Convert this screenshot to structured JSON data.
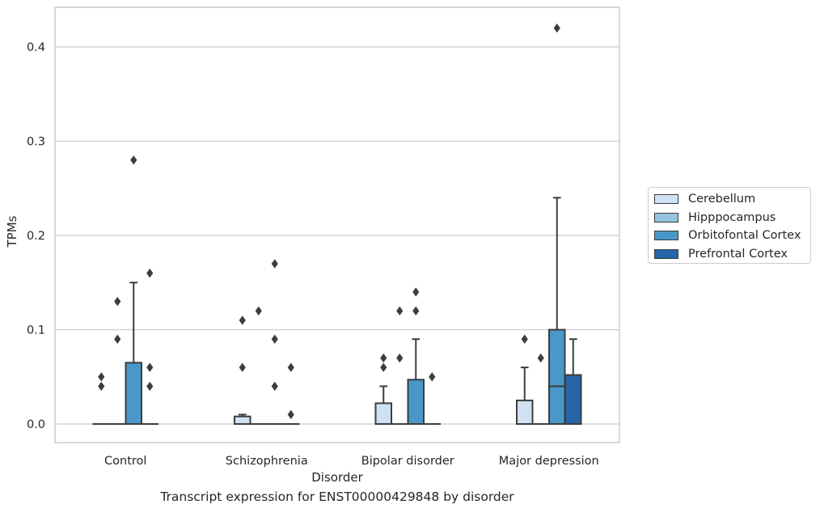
{
  "chart_data": {
    "type": "box",
    "title": "Transcript expression for ENST00000429848 by disorder",
    "xlabel": "Disorder",
    "ylabel": "TPMs",
    "ylim": [
      -0.02,
      0.443
    ],
    "yticks": [
      0.0,
      0.1,
      0.2,
      0.3,
      0.4
    ],
    "ytick_labels": [
      "0.0",
      "0.1",
      "0.2",
      "0.3",
      "0.4"
    ],
    "grid": "horizontal",
    "legend_position": "right",
    "categories": [
      "Control",
      "Schizophrenia",
      "Bipolar disorder",
      "Major depression"
    ],
    "series": [
      {
        "name": "Cerebellum",
        "color": "#d0e1f2",
        "boxes": [
          {
            "q1": 0.0,
            "median": 0.0,
            "q3": 0.0,
            "whisker_low": 0.0,
            "whisker_high": 0.0,
            "outliers": [
              0.05,
              0.04
            ]
          },
          {
            "q1": 0.0,
            "median": 0.0,
            "q3": 0.008,
            "whisker_low": 0.0,
            "whisker_high": 0.01,
            "outliers": [
              0.11,
              0.06
            ]
          },
          {
            "q1": 0.0,
            "median": 0.0,
            "q3": 0.022,
            "whisker_low": 0.0,
            "whisker_high": 0.04,
            "outliers": [
              0.07,
              0.06
            ]
          },
          {
            "q1": 0.0,
            "median": 0.0,
            "q3": 0.025,
            "whisker_low": 0.0,
            "whisker_high": 0.06,
            "outliers": [
              0.09
            ]
          }
        ]
      },
      {
        "name": "Hipppocampus",
        "color": "#94c4df",
        "boxes": [
          {
            "q1": 0.0,
            "median": 0.0,
            "q3": 0.0,
            "whisker_low": 0.0,
            "whisker_high": 0.0,
            "outliers": [
              0.13,
              0.09
            ]
          },
          {
            "q1": 0.0,
            "median": 0.0,
            "q3": 0.0,
            "whisker_low": 0.0,
            "whisker_high": 0.0,
            "outliers": [
              0.12
            ]
          },
          {
            "q1": 0.0,
            "median": 0.0,
            "q3": 0.0,
            "whisker_low": 0.0,
            "whisker_high": 0.0,
            "outliers": [
              0.12,
              0.07
            ]
          },
          {
            "q1": 0.0,
            "median": 0.0,
            "q3": 0.0,
            "whisker_low": 0.0,
            "whisker_high": 0.0,
            "outliers": [
              0.07
            ]
          }
        ]
      },
      {
        "name": "Orbitofontal Cortex",
        "color": "#4a98c9",
        "boxes": [
          {
            "q1": 0.0,
            "median": 0.0,
            "q3": 0.065,
            "whisker_low": 0.0,
            "whisker_high": 0.15,
            "outliers": [
              0.28
            ]
          },
          {
            "q1": 0.0,
            "median": 0.0,
            "q3": 0.0,
            "whisker_low": 0.0,
            "whisker_high": 0.0,
            "outliers": [
              0.17,
              0.09,
              0.04
            ]
          },
          {
            "q1": 0.0,
            "median": 0.0,
            "q3": 0.047,
            "whisker_low": 0.0,
            "whisker_high": 0.09,
            "outliers": [
              0.14,
              0.12
            ]
          },
          {
            "q1": 0.0,
            "median": 0.04,
            "q3": 0.1,
            "whisker_low": 0.0,
            "whisker_high": 0.24,
            "outliers": [
              0.42
            ]
          }
        ]
      },
      {
        "name": "Prefrontal Cortex",
        "color": "#2666a8",
        "boxes": [
          {
            "q1": 0.0,
            "median": 0.0,
            "q3": 0.0,
            "whisker_low": 0.0,
            "whisker_high": 0.0,
            "outliers": [
              0.16,
              0.06,
              0.04
            ]
          },
          {
            "q1": 0.0,
            "median": 0.0,
            "q3": 0.0,
            "whisker_low": 0.0,
            "whisker_high": 0.0,
            "outliers": [
              0.06,
              0.01
            ]
          },
          {
            "q1": 0.0,
            "median": 0.0,
            "q3": 0.0,
            "whisker_low": 0.0,
            "whisker_high": 0.0,
            "outliers": [
              0.05
            ]
          },
          {
            "q1": 0.0,
            "median": 0.0,
            "q3": 0.052,
            "whisker_low": 0.0,
            "whisker_high": 0.09,
            "outliers": []
          }
        ]
      }
    ]
  }
}
